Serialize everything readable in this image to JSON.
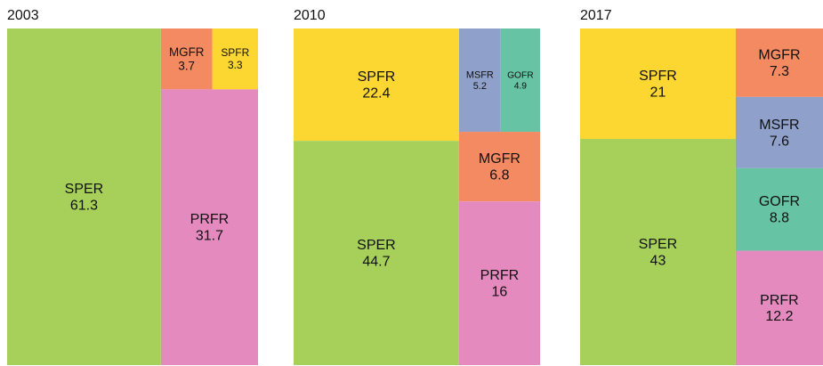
{
  "chart_data": [
    {
      "type": "treemap",
      "title": "2003",
      "categories": [
        "SPER",
        "PRFR",
        "MGFR",
        "SPFR"
      ],
      "values": [
        61.3,
        31.7,
        3.7,
        3.3
      ],
      "colors": [
        "#a6d05a",
        "#e48abf",
        "#f48a62",
        "#fcd732"
      ]
    },
    {
      "type": "treemap",
      "title": "2010",
      "categories": [
        "SPER",
        "SPFR",
        "PRFR",
        "MGFR",
        "MSFR",
        "GOFR"
      ],
      "values": [
        44.7,
        22.4,
        16,
        6.8,
        5.2,
        4.9
      ],
      "colors": [
        "#a6d05a",
        "#fcd732",
        "#e48abf",
        "#f48a62",
        "#8fa0ca",
        "#66c3a4"
      ]
    },
    {
      "type": "treemap",
      "title": "2017",
      "categories": [
        "SPER",
        "SPFR",
        "PRFR",
        "GOFR",
        "MSFR",
        "MGFR"
      ],
      "values": [
        43,
        21,
        12.2,
        8.8,
        7.6,
        7.3
      ],
      "colors": [
        "#a6d05a",
        "#fcd732",
        "#e48abf",
        "#66c3a4",
        "#8fa0ca",
        "#f48a62"
      ]
    }
  ]
}
